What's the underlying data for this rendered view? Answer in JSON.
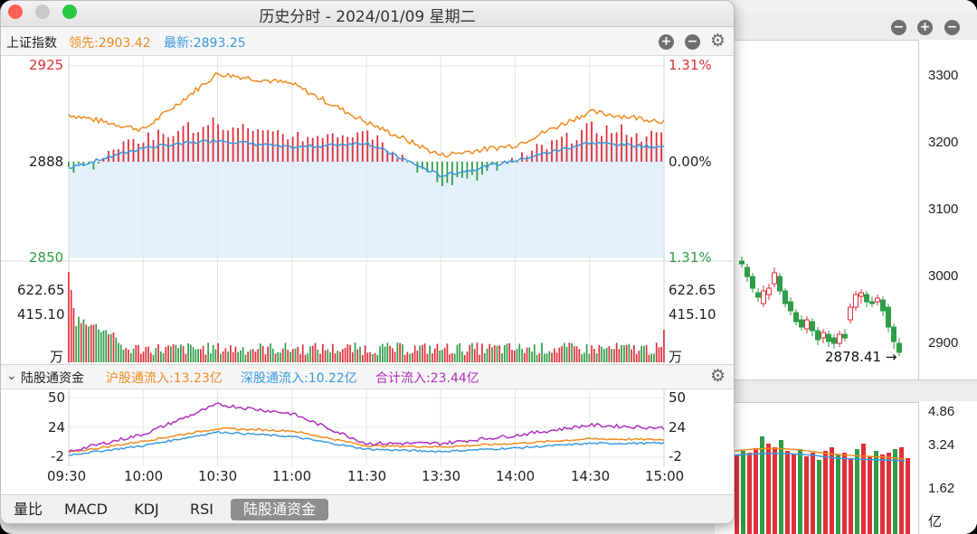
{
  "window": {
    "title": "历史分时 - 2024/01/09 星期二"
  },
  "infobar": {
    "index_name": "上证指数",
    "leader_label": "领先:2903.42",
    "latest_label": "最新:2893.25"
  },
  "price_panel": {
    "price_high": "2925",
    "price_mid": "2888",
    "price_low": "2850",
    "pct_high": "1.31%",
    "pct_mid": "0.00%",
    "pct_low": "1.31%"
  },
  "volume_panel": {
    "vol_high": "622.65",
    "vol_mid": "415.10",
    "unit": "万",
    "vol_high_right": "622.65",
    "vol_mid_right": "415.10",
    "unit_right": "万"
  },
  "capital_bar": {
    "title": "陆股通资金",
    "sh_inflow": "沪股通流入:13.23亿",
    "sz_inflow": "深股通流入:10.22亿",
    "total_inflow": "合计流入:23.44亿"
  },
  "capital_panel": {
    "y_top": "50",
    "y_mid": "24",
    "y_low": "-2",
    "y_top_right": "50",
    "y_mid_right": "24",
    "y_low_right": "-2"
  },
  "time_axis": [
    "09:30",
    "10:00",
    "10:30",
    "11:00",
    "11:30",
    "13:30",
    "14:00",
    "14:30",
    "15:00"
  ],
  "tabs": [
    "量比",
    "MACD",
    "KDJ",
    "RSI",
    "陆股通资金"
  ],
  "active_tab": "陆股通资金",
  "background_chart": {
    "y_labels": [
      "3300",
      "3200",
      "3100",
      "3000",
      "2900"
    ],
    "price_callout": "2878.41",
    "lower_labels": [
      "4.86",
      "3.24",
      "1.62",
      "亿"
    ]
  },
  "colors": {
    "up": "#e0303a",
    "down": "#2e9e48",
    "leader": "#f08c1e",
    "latest": "#3a9be0",
    "total": "#b030c0"
  },
  "chart_data": [
    {
      "type": "line",
      "title": "上证指数",
      "ylim": [
        2850,
        2925
      ],
      "x": [
        "09:30",
        "10:00",
        "10:30",
        "11:00",
        "11:30",
        "13:30",
        "14:00",
        "14:30",
        "15:00"
      ],
      "series": [
        {
          "name": "领先",
          "values": [
            2906,
            2900,
            2922,
            2918,
            2903,
            2890,
            2894,
            2907,
            2903.42
          ]
        },
        {
          "name": "最新",
          "values": [
            2885,
            2893,
            2896,
            2893,
            2895,
            2882,
            2888,
            2895,
            2893.25
          ]
        }
      ]
    },
    {
      "type": "line",
      "title": "陆股通资金",
      "ylim": [
        -2,
        50
      ],
      "x": [
        "09:30",
        "10:00",
        "10:30",
        "11:00",
        "11:30",
        "13:30",
        "14:00",
        "14:30",
        "15:00"
      ],
      "series": [
        {
          "name": "沪股通流入",
          "values": [
            2,
            12,
            23,
            21,
            8,
            7,
            10,
            14,
            13.23
          ]
        },
        {
          "name": "深股通流入",
          "values": [
            0,
            8,
            20,
            16,
            5,
            3,
            6,
            10,
            10.22
          ]
        },
        {
          "name": "合计流入",
          "values": [
            3,
            18,
            44,
            36,
            10,
            10,
            17,
            26,
            23.44
          ]
        }
      ]
    }
  ]
}
